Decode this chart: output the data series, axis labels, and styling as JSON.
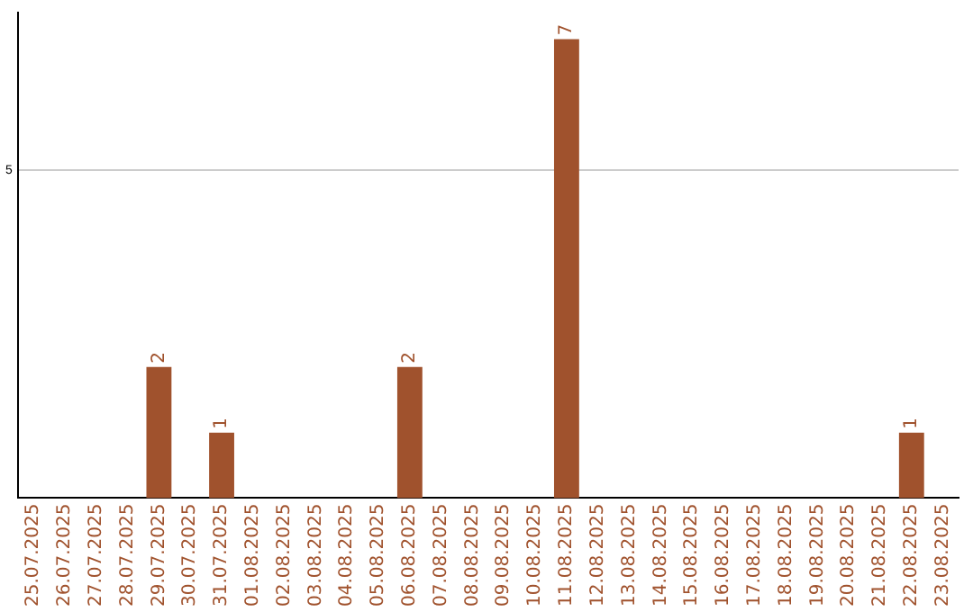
{
  "chart_data": {
    "type": "bar",
    "categories": [
      "25.07.2025",
      "26.07.2025",
      "27.07.2025",
      "28.07.2025",
      "29.07.2025",
      "30.07.2025",
      "31.07.2025",
      "01.08.2025",
      "02.08.2025",
      "03.08.2025",
      "04.08.2025",
      "05.08.2025",
      "06.08.2025",
      "07.08.2025",
      "08.08.2025",
      "09.08.2025",
      "10.08.2025",
      "11.08.2025",
      "12.08.2025",
      "13.08.2025",
      "14.08.2025",
      "15.08.2025",
      "16.08.2025",
      "17.08.2025",
      "18.08.2025",
      "19.08.2025",
      "20.08.2025",
      "21.08.2025",
      "22.08.2025",
      "23.08.2025"
    ],
    "values": [
      0,
      0,
      0,
      0,
      2,
      0,
      1,
      0,
      0,
      0,
      0,
      0,
      2,
      0,
      0,
      0,
      0,
      7,
      0,
      0,
      0,
      0,
      0,
      0,
      0,
      0,
      0,
      0,
      1,
      0
    ],
    "value_labels": [
      null,
      null,
      null,
      null,
      "2",
      null,
      "1",
      null,
      null,
      null,
      null,
      null,
      "2",
      null,
      null,
      null,
      null,
      "7",
      null,
      null,
      null,
      null,
      null,
      null,
      null,
      null,
      null,
      null,
      "1",
      null
    ],
    "color": "#a0522d",
    "ylim": [
      0,
      7.4
    ],
    "yticks": [
      5
    ],
    "grid": "y",
    "legend": false
  }
}
